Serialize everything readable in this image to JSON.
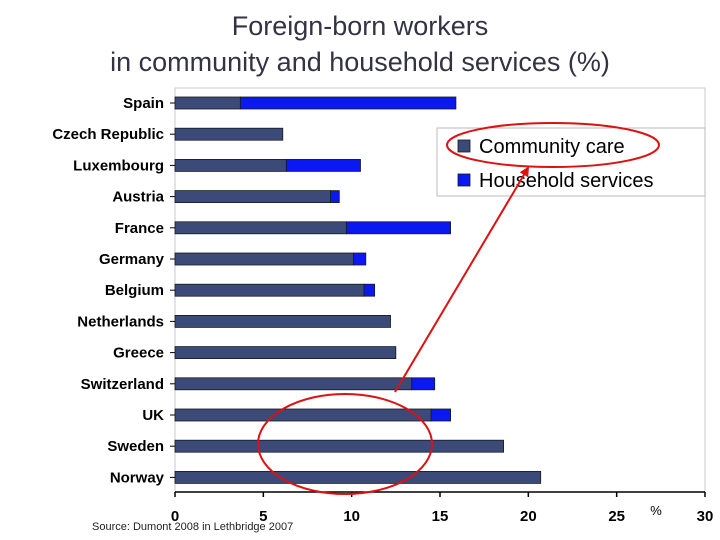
{
  "title_line1": "Foreign-born workers",
  "title_line2": "in community and household services (%)",
  "source": "Source: Dumont 2008 in Lethbridge 2007",
  "colors": {
    "community_care": "#3b4a78",
    "household_services": "#0a19f2",
    "annotation": "#dd1111",
    "plot_border": "#c8c8c8",
    "legend_border": "#bbbbbb"
  },
  "chart_data": {
    "type": "bar",
    "orientation": "horizontal",
    "stacked": true,
    "categories": [
      "Spain",
      "Czech Republic",
      "Luxembourg",
      "Austria",
      "France",
      "Germany",
      "Belgium",
      "Netherlands",
      "Greece",
      "Switzerland",
      "UK",
      "Sweden",
      "Norway"
    ],
    "series": [
      {
        "name": "Community care",
        "values": [
          3.7,
          6.1,
          6.3,
          8.8,
          9.7,
          10.1,
          10.7,
          12.2,
          12.5,
          13.4,
          14.5,
          18.6,
          20.7
        ]
      },
      {
        "name": "Household services",
        "values": [
          12.2,
          0,
          4.2,
          0.5,
          5.9,
          0.7,
          0.6,
          0,
          0,
          1.3,
          1.1,
          0,
          0
        ]
      }
    ],
    "xlim": [
      0,
      30
    ],
    "xticks": [
      "0",
      "5",
      "10",
      "15",
      "20",
      "25",
      "30"
    ],
    "xlabel": "%",
    "legend_position": "top-right",
    "grid": false,
    "annotations": [
      {
        "type": "ellipse",
        "around": "legend: Community care"
      },
      {
        "type": "ellipse",
        "around": "UK, Sweden, Norway bars"
      },
      {
        "type": "arrow",
        "from": "Switzerland bar",
        "to": "legend: Community care"
      }
    ]
  }
}
